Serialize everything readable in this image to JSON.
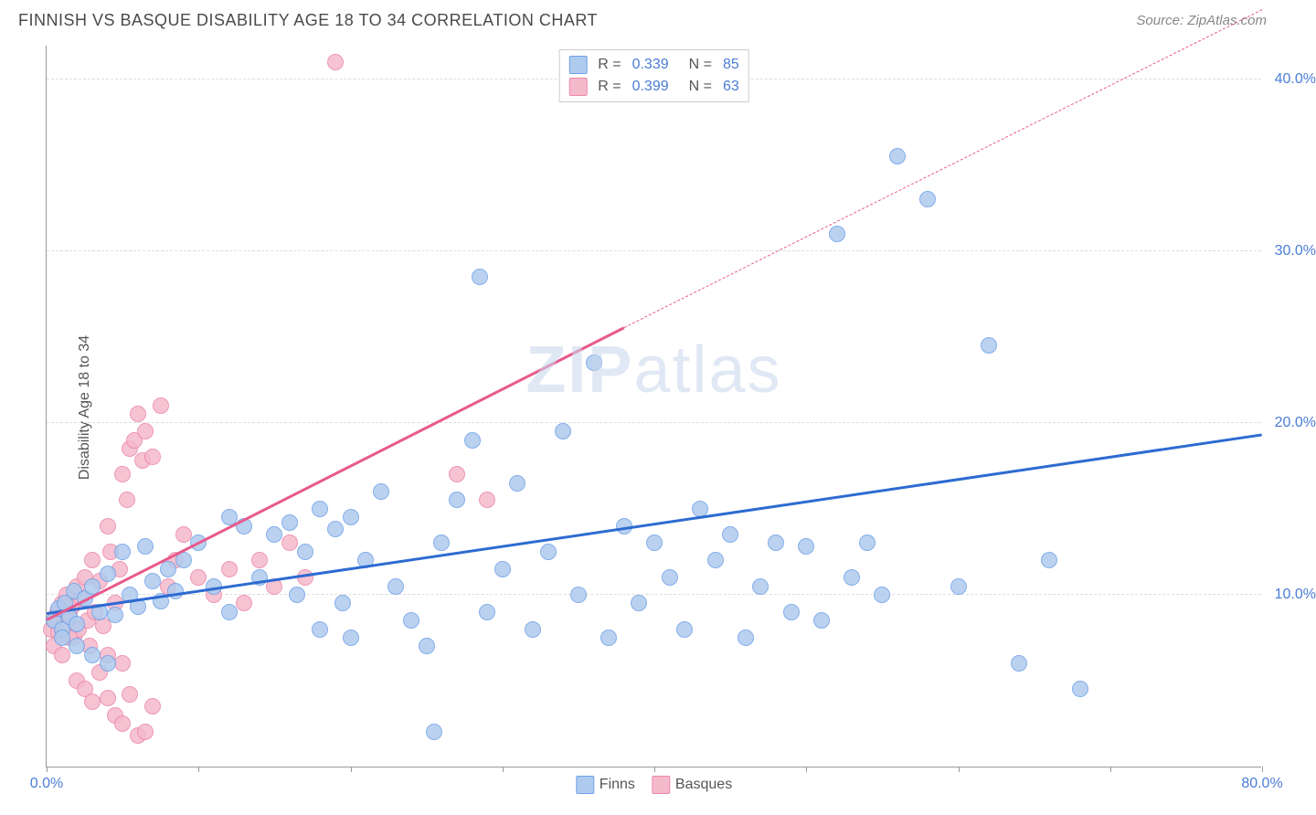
{
  "header": {
    "title": "FINNISH VS BASQUE DISABILITY AGE 18 TO 34 CORRELATION CHART",
    "source_prefix": "Source: ",
    "source_name": "ZipAtlas.com"
  },
  "watermark": {
    "zip": "ZIP",
    "atlas": "atlas"
  },
  "chart": {
    "type": "scatter",
    "y_axis_label": "Disability Age 18 to 34",
    "xlim": [
      0,
      80
    ],
    "ylim": [
      0,
      42
    ],
    "x_ticks": [
      0,
      10,
      20,
      30,
      40,
      50,
      60,
      70,
      80
    ],
    "x_tick_labels": {
      "0": "0.0%",
      "80": "80.0%"
    },
    "y_gridlines": [
      10,
      20,
      30,
      40
    ],
    "y_tick_labels": {
      "10": "10.0%",
      "20": "20.0%",
      "30": "30.0%",
      "40": "40.0%"
    },
    "background_color": "#ffffff",
    "grid_color": "#dddddd",
    "axis_color": "#999999",
    "tick_label_color": "#4a7dd6",
    "marker_radius": 9,
    "marker_stroke_width": 1.5,
    "marker_fill_opacity": 0.35
  },
  "series": {
    "finns": {
      "label": "Finns",
      "color_stroke": "#6fa0e8",
      "color_fill": "#aecbee",
      "trend_color": "#2d6bd1",
      "trend_width": 3,
      "R": "0.339",
      "N": "85",
      "trend": {
        "x1": 0,
        "y1": 8.8,
        "x2": 80,
        "y2": 19.2
      },
      "points": [
        [
          0.5,
          8.5
        ],
        [
          0.8,
          9.2
        ],
        [
          1.0,
          8.0
        ],
        [
          1.2,
          9.5
        ],
        [
          1.5,
          8.7
        ],
        [
          1.8,
          10.2
        ],
        [
          2.0,
          8.3
        ],
        [
          2.5,
          9.8
        ],
        [
          3.0,
          10.5
        ],
        [
          3.5,
          9.0
        ],
        [
          4.0,
          11.2
        ],
        [
          4.5,
          8.8
        ],
        [
          5.0,
          12.5
        ],
        [
          5.5,
          10.0
        ],
        [
          6.0,
          9.3
        ],
        [
          6.5,
          12.8
        ],
        [
          7.0,
          10.8
        ],
        [
          7.5,
          9.6
        ],
        [
          8.0,
          11.5
        ],
        [
          8.5,
          10.2
        ],
        [
          9.0,
          12.0
        ],
        [
          10.0,
          13.0
        ],
        [
          11.0,
          10.5
        ],
        [
          12.0,
          9.0
        ],
        [
          13.0,
          14.0
        ],
        [
          14.0,
          11.0
        ],
        [
          15.0,
          13.5
        ],
        [
          16.0,
          14.2
        ],
        [
          16.5,
          10.0
        ],
        [
          17.0,
          12.5
        ],
        [
          18.0,
          15.0
        ],
        [
          19.0,
          13.8
        ],
        [
          19.5,
          9.5
        ],
        [
          20.0,
          14.5
        ],
        [
          21.0,
          12.0
        ],
        [
          22.0,
          16.0
        ],
        [
          23.0,
          10.5
        ],
        [
          24.0,
          8.5
        ],
        [
          25.0,
          7.0
        ],
        [
          25.5,
          2.0
        ],
        [
          26.0,
          13.0
        ],
        [
          27.0,
          15.5
        ],
        [
          28.0,
          19.0
        ],
        [
          28.5,
          28.5
        ],
        [
          29.0,
          9.0
        ],
        [
          30.0,
          11.5
        ],
        [
          31.0,
          16.5
        ],
        [
          32.0,
          8.0
        ],
        [
          33.0,
          12.5
        ],
        [
          34.0,
          19.5
        ],
        [
          35.0,
          10.0
        ],
        [
          36.0,
          23.5
        ],
        [
          37.0,
          7.5
        ],
        [
          38.0,
          14.0
        ],
        [
          39.0,
          9.5
        ],
        [
          40.0,
          13.0
        ],
        [
          41.0,
          11.0
        ],
        [
          42.0,
          8.0
        ],
        [
          43.0,
          15.0
        ],
        [
          44.0,
          12.0
        ],
        [
          45.0,
          13.5
        ],
        [
          46.0,
          7.5
        ],
        [
          47.0,
          10.5
        ],
        [
          48.0,
          13.0
        ],
        [
          49.0,
          9.0
        ],
        [
          50.0,
          12.8
        ],
        [
          51.0,
          8.5
        ],
        [
          52.0,
          31.0
        ],
        [
          53.0,
          11.0
        ],
        [
          54.0,
          13.0
        ],
        [
          55.0,
          10.0
        ],
        [
          56.0,
          35.5
        ],
        [
          58.0,
          33.0
        ],
        [
          60.0,
          10.5
        ],
        [
          62.0,
          24.5
        ],
        [
          64.0,
          6.0
        ],
        [
          66.0,
          12.0
        ],
        [
          68.0,
          4.5
        ],
        [
          1.0,
          7.5
        ],
        [
          2.0,
          7.0
        ],
        [
          3.0,
          6.5
        ],
        [
          4.0,
          6.0
        ],
        [
          12.0,
          14.5
        ],
        [
          18.0,
          8.0
        ],
        [
          20.0,
          7.5
        ]
      ]
    },
    "basques": {
      "label": "Basques",
      "color_stroke": "#ec87a8",
      "color_fill": "#f5b9cc",
      "trend_color": "#e85a8c",
      "trend_width": 2.5,
      "R": "0.399",
      "N": "63",
      "trend_solid": {
        "x1": 0,
        "y1": 8.5,
        "x2": 38,
        "y2": 25.5
      },
      "trend_dash": {
        "x1": 38,
        "y1": 25.5,
        "x2": 80,
        "y2": 44.0
      },
      "points": [
        [
          0.3,
          8.0
        ],
        [
          0.5,
          8.5
        ],
        [
          0.7,
          9.0
        ],
        [
          0.8,
          7.8
        ],
        [
          1.0,
          9.5
        ],
        [
          1.1,
          8.2
        ],
        [
          1.3,
          10.0
        ],
        [
          1.5,
          8.8
        ],
        [
          1.7,
          9.3
        ],
        [
          1.8,
          7.5
        ],
        [
          2.0,
          10.5
        ],
        [
          2.1,
          8.0
        ],
        [
          2.3,
          9.8
        ],
        [
          2.5,
          11.0
        ],
        [
          2.7,
          8.5
        ],
        [
          2.8,
          7.0
        ],
        [
          3.0,
          12.0
        ],
        [
          3.2,
          9.0
        ],
        [
          3.5,
          10.8
        ],
        [
          3.7,
          8.2
        ],
        [
          4.0,
          14.0
        ],
        [
          4.2,
          12.5
        ],
        [
          4.5,
          9.5
        ],
        [
          4.8,
          11.5
        ],
        [
          5.0,
          17.0
        ],
        [
          5.3,
          15.5
        ],
        [
          5.5,
          18.5
        ],
        [
          5.8,
          19.0
        ],
        [
          6.0,
          20.5
        ],
        [
          6.3,
          17.8
        ],
        [
          6.5,
          19.5
        ],
        [
          7.0,
          18.0
        ],
        [
          7.5,
          21.0
        ],
        [
          8.0,
          10.5
        ],
        [
          8.5,
          12.0
        ],
        [
          9.0,
          13.5
        ],
        [
          2.0,
          5.0
        ],
        [
          2.5,
          4.5
        ],
        [
          3.0,
          3.8
        ],
        [
          3.5,
          5.5
        ],
        [
          4.0,
          4.0
        ],
        [
          4.5,
          3.0
        ],
        [
          5.0,
          2.5
        ],
        [
          5.5,
          4.2
        ],
        [
          6.0,
          1.8
        ],
        [
          6.5,
          2.0
        ],
        [
          7.0,
          3.5
        ],
        [
          4.0,
          6.5
        ],
        [
          5.0,
          6.0
        ],
        [
          10.0,
          11.0
        ],
        [
          11.0,
          10.0
        ],
        [
          12.0,
          11.5
        ],
        [
          13.0,
          9.5
        ],
        [
          14.0,
          12.0
        ],
        [
          15.0,
          10.5
        ],
        [
          16.0,
          13.0
        ],
        [
          17.0,
          11.0
        ],
        [
          19.0,
          41.0
        ],
        [
          27.0,
          17.0
        ],
        [
          29.0,
          15.5
        ],
        [
          0.5,
          7.0
        ],
        [
          1.0,
          6.5
        ],
        [
          1.5,
          7.5
        ]
      ]
    }
  },
  "legend_top": {
    "r_label": "R =",
    "n_label": "N ="
  },
  "legend_bottom": {
    "items": [
      "finns",
      "basques"
    ]
  }
}
